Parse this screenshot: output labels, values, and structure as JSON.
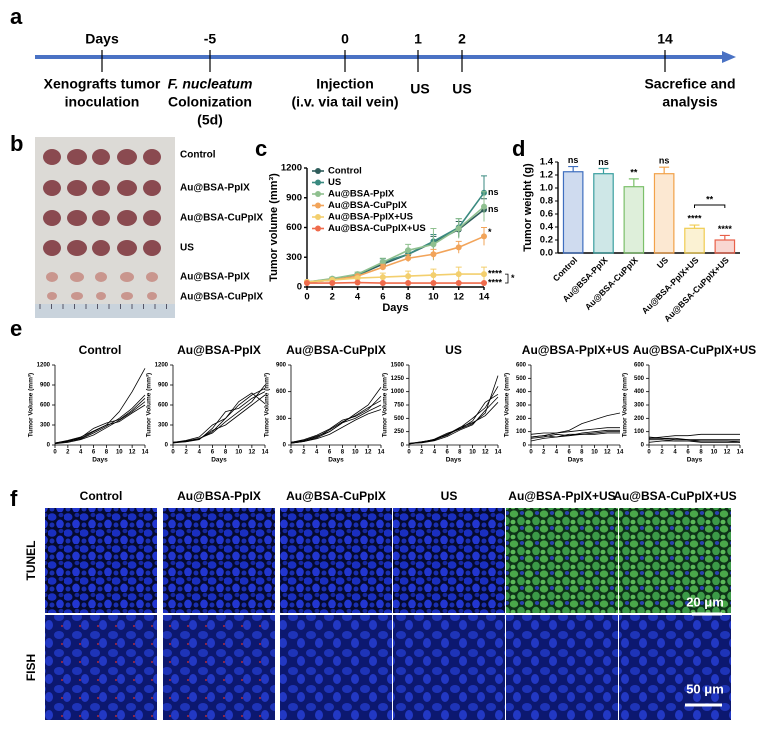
{
  "panel_labels": [
    "a",
    "b",
    "c",
    "d",
    "e",
    "f"
  ],
  "timeline": {
    "ticks": [
      "Days",
      "-5",
      "0",
      "1",
      "2",
      "14"
    ],
    "events": [
      [
        "Xenografts tumor",
        "inoculation"
      ],
      [
        "F. nucleatum",
        "Colonization",
        "(5d)"
      ],
      [
        "Injection",
        "(i.v. via tail vein)"
      ],
      [
        "US"
      ],
      [
        "US"
      ],
      [
        "Sacrefice and",
        "analysis"
      ]
    ]
  },
  "photo": {
    "rows": [
      "Control",
      "Au@BSA-PpIX",
      "Au@BSA-CuPpIX",
      "US",
      "Au@BSA-PpIX",
      "Au@BSA-CuPpIX"
    ]
  },
  "microscopy": {
    "columns": [
      "Control",
      "Au@BSA-PpIX",
      "Au@BSA-CuPpIX",
      "US",
      "Au@BSA-PpIX+US",
      "Au@BSA-CuPpIX+US"
    ],
    "rows": [
      "TUNEL",
      "FISH"
    ],
    "scale_bars": [
      "20 μm",
      "50 μm"
    ]
  },
  "chart_data": [
    {
      "type": "line",
      "ylabel": "Tumor volume (mm³)",
      "xlabel": "Days",
      "x": [
        0,
        2,
        4,
        6,
        8,
        10,
        12,
        14
      ],
      "xlim": [
        0,
        14
      ],
      "xticks": [
        0,
        2,
        4,
        6,
        8,
        10,
        12,
        14
      ],
      "ylim": [
        0,
        1200
      ],
      "yticks": [
        0,
        300,
        600,
        900,
        1200
      ],
      "series": [
        {
          "name": "Control",
          "color": "#2f5d5b",
          "values": [
            50,
            70,
            120,
            230,
            330,
            450,
            580,
            780
          ],
          "errors": [
            10,
            12,
            15,
            30,
            40,
            60,
            80,
            110
          ],
          "end_label": "ns"
        },
        {
          "name": "US",
          "color": "#3a8a80",
          "values": [
            50,
            80,
            120,
            250,
            330,
            460,
            600,
            950
          ],
          "errors": [
            10,
            12,
            15,
            35,
            45,
            70,
            90,
            170
          ],
          "end_label": "ns"
        },
        {
          "name": "Au@BSA-PpIX",
          "color": "#8fc08f",
          "values": [
            50,
            85,
            130,
            250,
            370,
            430,
            590,
            810
          ],
          "errors": [
            10,
            15,
            20,
            40,
            60,
            160,
            100,
            150
          ]
        },
        {
          "name": "Au@BSA-CuPpIX",
          "color": "#f2a45a",
          "values": [
            50,
            70,
            110,
            200,
            290,
            330,
            400,
            510
          ],
          "errors": [
            8,
            10,
            15,
            30,
            35,
            50,
            60,
            90
          ],
          "end_label": "*"
        },
        {
          "name": "Au@BSA-PpIX+US",
          "color": "#f3cf6e",
          "values": [
            50,
            70,
            90,
            100,
            110,
            120,
            130,
            130
          ],
          "errors": [
            8,
            10,
            15,
            40,
            50,
            60,
            70,
            70
          ],
          "end_label": "****"
        },
        {
          "name": "Au@BSA-CuPpIX+US",
          "color": "#ef6b4c",
          "values": [
            40,
            40,
            45,
            40,
            40,
            40,
            40,
            40
          ],
          "errors": [
            5,
            5,
            5,
            5,
            5,
            5,
            5,
            5
          ],
          "end_label": "****"
        }
      ],
      "bracket_label": "*"
    },
    {
      "type": "bar",
      "ylabel": "Tumor weight (g)",
      "categories": [
        "Control",
        "Au@BSA-PpIX",
        "Au@BSA-CuPpIX",
        "US",
        "Au@BSA-PpIX+US",
        "Au@BSA-CuPpIX+US"
      ],
      "values": [
        1.25,
        1.22,
        1.02,
        1.22,
        0.38,
        0.2
      ],
      "errors": [
        0.08,
        0.08,
        0.12,
        0.1,
        0.05,
        0.07
      ],
      "colors": [
        "#3f6fc0",
        "#3a9fa0",
        "#7cc06a",
        "#f2a24a",
        "#f0cc50",
        "#e8604a"
      ],
      "significance": [
        "ns",
        "ns",
        "**",
        "ns",
        "****",
        "****"
      ],
      "bracket_label": "**",
      "ylim": [
        0,
        1.4
      ],
      "yticks": [
        {
          "value": 0,
          "label": "0.0"
        },
        0.2,
        0.4,
        0.6,
        0.8,
        {
          "value": 1,
          "label": "1.0"
        },
        1.2,
        1.4
      ]
    },
    {
      "type": "line",
      "title": "Control",
      "ylabel": "Tumor Volume (mm³)",
      "xlabel": "Days",
      "color": "#000000",
      "x": [
        0,
        2,
        4,
        6,
        8,
        10,
        12,
        14
      ],
      "xlim": [
        0,
        14
      ],
      "xticks": [
        0,
        2,
        4,
        6,
        8,
        10,
        12,
        14
      ],
      "ylim": [
        0,
        1200
      ],
      "yticks": [
        0,
        300,
        600,
        900,
        1200
      ],
      "series": [
        {
          "values": [
            30,
            60,
            100,
            200,
            300,
            500,
            800,
            1150
          ]
        },
        {
          "values": [
            30,
            50,
            90,
            180,
            280,
            400,
            550,
            750
          ]
        },
        {
          "values": [
            30,
            60,
            110,
            250,
            330,
            380,
            520,
            700
          ]
        },
        {
          "values": [
            20,
            40,
            80,
            150,
            260,
            370,
            500,
            650
          ]
        },
        {
          "values": [
            30,
            70,
            120,
            210,
            300,
            350,
            480,
            600
          ]
        }
      ]
    },
    {
      "type": "line",
      "title": "Au@BSA-PpIX",
      "ylabel": "Tumor Volume (mm³)",
      "xlabel": "Days",
      "color": "#000000",
      "x": [
        0,
        2,
        4,
        6,
        8,
        10,
        12,
        14
      ],
      "xlim": [
        0,
        14
      ],
      "xticks": [
        0,
        2,
        4,
        6,
        8,
        10,
        12,
        14
      ],
      "ylim": [
        0,
        1200
      ],
      "yticks": [
        0,
        300,
        600,
        900,
        1200
      ],
      "series": [
        {
          "values": [
            40,
            60,
            90,
            200,
            400,
            600,
            750,
            850
          ]
        },
        {
          "values": [
            30,
            50,
            80,
            250,
            500,
            550,
            700,
            800
          ]
        },
        {
          "values": [
            40,
            70,
            120,
            300,
            400,
            650,
            780,
            620
          ]
        },
        {
          "values": [
            30,
            60,
            100,
            180,
            350,
            500,
            650,
            900
          ]
        },
        {
          "values": [
            40,
            50,
            90,
            220,
            300,
            450,
            600,
            750
          ]
        }
      ]
    },
    {
      "type": "line",
      "title": "Au@BSA-CuPpIX",
      "ylabel": "Tumor Volume (mm³)",
      "xlabel": "Days",
      "color": "#000000",
      "x": [
        0,
        2,
        4,
        6,
        8,
        10,
        12,
        14
      ],
      "xlim": [
        0,
        14
      ],
      "xticks": [
        0,
        2,
        4,
        6,
        8,
        10,
        12,
        14
      ],
      "ylim": [
        0,
        900
      ],
      "yticks": [
        0,
        300,
        600,
        900
      ],
      "series": [
        {
          "values": [
            30,
            50,
            100,
            150,
            250,
            350,
            450,
            650
          ]
        },
        {
          "values": [
            30,
            60,
            110,
            180,
            280,
            320,
            400,
            550
          ]
        },
        {
          "values": [
            20,
            40,
            80,
            150,
            250,
            300,
            380,
            450
          ]
        },
        {
          "values": [
            30,
            50,
            90,
            170,
            260,
            330,
            420,
            500
          ]
        },
        {
          "values": [
            20,
            40,
            70,
            120,
            200,
            280,
            350,
            400
          ]
        }
      ]
    },
    {
      "type": "line",
      "title": "US",
      "ylabel": "Tumor Volume (mm³)",
      "xlabel": "Days",
      "color": "#000000",
      "x": [
        0,
        2,
        4,
        6,
        8,
        10,
        12,
        14
      ],
      "xlim": [
        0,
        14
      ],
      "xticks": [
        0,
        2,
        4,
        6,
        8,
        10,
        12,
        14
      ],
      "ylim": [
        0,
        1500
      ],
      "yticks": [
        0,
        250,
        500,
        750,
        1000,
        1250,
        1500
      ],
      "series": [
        {
          "values": [
            30,
            50,
            90,
            200,
            300,
            400,
            600,
            1300
          ]
        },
        {
          "values": [
            30,
            60,
            100,
            180,
            320,
            500,
            700,
            1100
          ]
        },
        {
          "values": [
            20,
            50,
            110,
            220,
            300,
            450,
            800,
            950
          ]
        },
        {
          "values": [
            30,
            40,
            80,
            160,
            280,
            380,
            650,
            900
          ]
        },
        {
          "values": [
            20,
            60,
            100,
            200,
            330,
            420,
            550,
            800
          ]
        }
      ]
    },
    {
      "type": "line",
      "title": "Au@BSA-PpIX+US",
      "ylabel": "Tumor Volume (mm³)",
      "xlabel": "Days",
      "color": "#000000",
      "x": [
        0,
        2,
        4,
        6,
        8,
        10,
        12,
        14
      ],
      "xlim": [
        0,
        14
      ],
      "xticks": [
        0,
        2,
        4,
        6,
        8,
        10,
        12,
        14
      ],
      "ylim": [
        0,
        600
      ],
      "yticks": [
        0,
        100,
        200,
        300,
        400,
        500,
        600
      ],
      "series": [
        {
          "values": [
            60,
            70,
            90,
            110,
            160,
            190,
            220,
            240
          ]
        },
        {
          "values": [
            80,
            90,
            90,
            100,
            110,
            120,
            130,
            130
          ]
        },
        {
          "values": [
            50,
            60,
            80,
            70,
            90,
            100,
            110,
            110
          ]
        },
        {
          "values": [
            60,
            70,
            60,
            80,
            80,
            90,
            100,
            100
          ]
        },
        {
          "values": [
            30,
            50,
            60,
            70,
            80,
            80,
            90,
            90
          ]
        }
      ]
    },
    {
      "type": "line",
      "title": "Au@BSA-CuPpIX+US",
      "ylabel": "Tumor Volume (mm³)",
      "xlabel": "Days",
      "color": "#000000",
      "x": [
        0,
        2,
        4,
        6,
        8,
        10,
        12,
        14
      ],
      "xlim": [
        0,
        14
      ],
      "xticks": [
        0,
        2,
        4,
        6,
        8,
        10,
        12,
        14
      ],
      "ylim": [
        0,
        600
      ],
      "yticks": [
        0,
        100,
        200,
        300,
        400,
        500,
        600
      ],
      "series": [
        {
          "values": [
            50,
            60,
            70,
            70,
            80,
            80,
            80,
            80
          ]
        },
        {
          "values": [
            60,
            50,
            50,
            40,
            40,
            40,
            40,
            40
          ]
        },
        {
          "values": [
            40,
            40,
            30,
            30,
            30,
            30,
            30,
            20
          ]
        },
        {
          "values": [
            20,
            30,
            30,
            30,
            20,
            20,
            20,
            20
          ]
        },
        {
          "values": [
            50,
            50,
            40,
            40,
            30,
            30,
            30,
            30
          ]
        }
      ]
    }
  ]
}
